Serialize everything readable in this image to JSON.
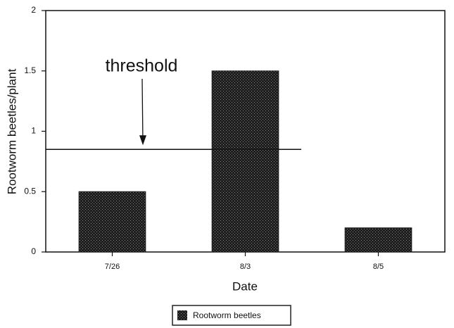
{
  "chart_data": {
    "type": "bar",
    "categories": [
      "7/26",
      "8/3",
      "8/5"
    ],
    "series": [
      {
        "name": "Rootworm beetles",
        "color": "#1e1e1e",
        "values": [
          0.5,
          1.5,
          0.2
        ]
      }
    ],
    "ylim": [
      0,
      2
    ],
    "yticks": [
      0,
      0.5,
      1,
      1.5,
      2
    ],
    "y_label": "Rootworm beetles/plant",
    "x_label": "Date",
    "threshold": {
      "label": "threshold",
      "value": 0.85
    },
    "legend": "bottom"
  }
}
